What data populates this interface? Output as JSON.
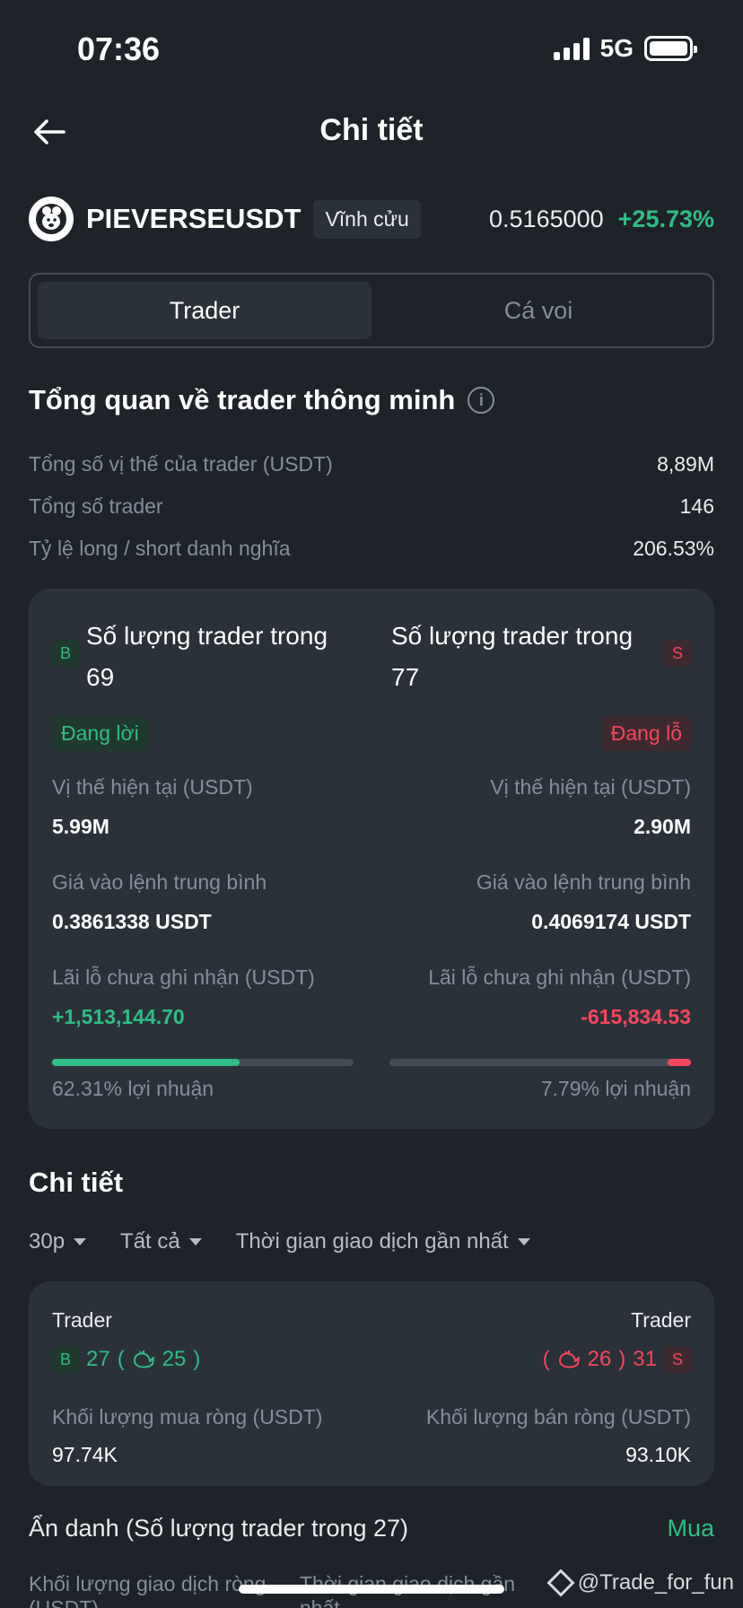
{
  "status": {
    "time": "07:36",
    "network": "5G"
  },
  "header": {
    "title": "Chi tiết"
  },
  "symbol": {
    "name": "PIEVERSEUSDT",
    "tag": "Vĩnh cửu",
    "price": "0.5165000",
    "change": "+25.73%"
  },
  "tabs": [
    {
      "label": "Trader",
      "active": true
    },
    {
      "label": "Cá voi",
      "active": false
    }
  ],
  "overview": {
    "title": "Tổng quan về trader thông minh",
    "rows": [
      {
        "label": "Tổng số vị thế của trader (USDT)",
        "value": "8,89M"
      },
      {
        "label": "Tổng số trader",
        "value": "146"
      },
      {
        "label": "Tỷ lệ long / short danh nghĩa",
        "value": "206.53%"
      }
    ]
  },
  "compare": {
    "long": {
      "badge": "B",
      "title": "Số lượng trader trong",
      "count": "69",
      "status": "Đang lời",
      "pos_label": "Vị thế hiện tại (USDT)",
      "pos_value": "5.99M",
      "entry_label": "Giá vào lệnh trung bình",
      "entry_value": "0.3861338 USDT",
      "pnl_label": "Lãi lỗ chưa ghi nhận (USDT)",
      "pnl_value": "+1,513,144.70",
      "profit_ratio": 0.6231,
      "profit_text": "62.31% lợi nhuận"
    },
    "short": {
      "badge": "S",
      "title": "Số lượng trader trong",
      "count": "77",
      "status": "Đang lỗ",
      "pos_label": "Vị thế hiện tại (USDT)",
      "pos_value": "2.90M",
      "entry_label": "Giá vào lệnh trung bình",
      "entry_value": "0.4069174 USDT",
      "pnl_label": "Lãi lỗ chưa ghi nhận (USDT)",
      "pnl_value": "-615,834.53",
      "profit_ratio": 0.0779,
      "profit_text": "7.79% lợi nhuận"
    }
  },
  "details": {
    "title": "Chi tiết",
    "filters": [
      {
        "label": "30p"
      },
      {
        "label": "Tất cả"
      },
      {
        "label": "Thời gian giao dịch gần nhất"
      }
    ],
    "card": {
      "left": {
        "label": "Trader",
        "badge": "B",
        "count": "27",
        "paren_open": "(",
        "whale": "25",
        "paren_close": ")",
        "vol_label": "Khối lượng mua ròng (USDT)",
        "vol_value": "97.74K"
      },
      "right": {
        "label": "Trader",
        "badge": "S",
        "count": "31",
        "paren_open": "(",
        "whale": "26",
        "paren_close": ")",
        "vol_label": "Khối lượng bán ròng (USDT)",
        "vol_value": "93.10K"
      }
    }
  },
  "anon": {
    "label": "Ẩn danh (Số lượng trader trong 27)",
    "side": "Mua"
  },
  "cut_row": {
    "left": "Khối lượng giao dịch ròng (USDT)",
    "right": "Thời gian giao dịch gần nhất"
  },
  "watermark": "@Trade_for_fun",
  "colors": {
    "bg": "#1e2329",
    "card": "#2b3139",
    "green": "#2ebd85",
    "red": "#f6465d",
    "muted": "#848e9c"
  }
}
